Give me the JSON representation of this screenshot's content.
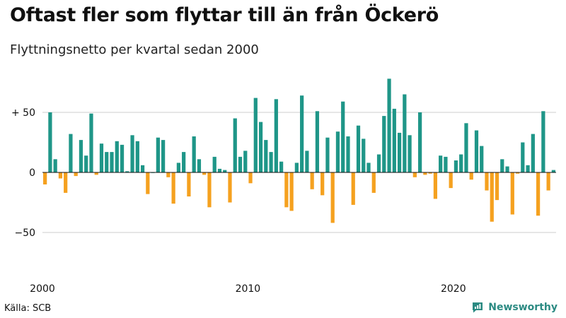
{
  "header": {
    "title": "Oftast fler som flyttar till än från Öckerö",
    "subtitle": "Flyttningsnetto per kvartal sedan 2000"
  },
  "footer": {
    "source": "Källa: SCB",
    "brand": "Newsworthy",
    "brand_icon": "newsworthy-logo-icon"
  },
  "colors": {
    "positive": "#1f9688",
    "negative": "#f5a11f",
    "zero_line": "#111111",
    "grid": "#cccccc",
    "brand": "#2b8a82"
  },
  "chart_data": {
    "type": "bar",
    "title": "Oftast fler som flyttar till än från Öckerö",
    "subtitle": "Flyttningsnetto per kvartal sedan 2000",
    "xlabel": "",
    "ylabel": "",
    "ylim": [
      -80,
      80
    ],
    "y_ticks": [
      {
        "value": 50,
        "label": "+ 50"
      },
      {
        "value": 0,
        "label": "0"
      },
      {
        "value": -50,
        "label": "−50"
      }
    ],
    "x_ticks": [
      {
        "index": 0,
        "label": "2000"
      },
      {
        "index": 40,
        "label": "2010"
      },
      {
        "index": 80,
        "label": "2020"
      }
    ],
    "grid": true,
    "start_quarter": "2000Q1",
    "values": [
      -10,
      50,
      11,
      -5,
      -17,
      32,
      -3,
      27,
      14,
      49,
      -2,
      24,
      17,
      17,
      26,
      23,
      1,
      31,
      26,
      6,
      -18,
      0,
      29,
      27,
      -4,
      -26,
      8,
      17,
      -20,
      30,
      11,
      -2,
      -29,
      13,
      3,
      2,
      -25,
      45,
      13,
      18,
      -9,
      62,
      42,
      27,
      17,
      61,
      9,
      -29,
      -32,
      8,
      64,
      18,
      -14,
      51,
      -19,
      29,
      -42,
      34,
      59,
      30,
      -27,
      39,
      28,
      8,
      -17,
      15,
      47,
      78,
      53,
      33,
      65,
      31,
      -4,
      50,
      -2,
      -1,
      -22,
      14,
      13,
      -13,
      10,
      15,
      41,
      -6,
      35,
      22,
      -15,
      -41,
      -23,
      11,
      5,
      -35,
      -1,
      25,
      6,
      32,
      -36,
      51,
      -15,
      2
    ]
  }
}
